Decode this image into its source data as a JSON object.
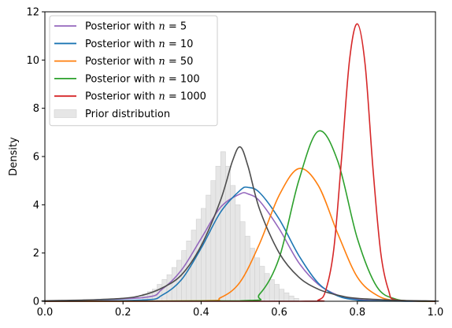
{
  "chart_data": {
    "type": "line",
    "xlabel": "",
    "ylabel": "Density",
    "xlim": [
      0.0,
      1.0
    ],
    "ylim": [
      0,
      12
    ],
    "xticks": [
      "0.0",
      "0.2",
      "0.4",
      "0.6",
      "0.8",
      "1.0"
    ],
    "yticks": [
      "0",
      "2",
      "4",
      "6",
      "8",
      "10",
      "12"
    ],
    "grid": false,
    "legend_position": "top-left",
    "series": [
      {
        "name": "Posterior with n = 5",
        "label_prefix": "Posterior with ",
        "label_var": "n",
        "label_value": "5",
        "color": "#9467bd",
        "x": [
          0.25,
          0.3,
          0.35,
          0.4,
          0.45,
          0.5,
          0.52,
          0.55,
          0.6,
          0.65,
          0.7,
          0.75,
          0.8,
          0.85
        ],
        "y": [
          0.15,
          0.5,
          1.3,
          2.6,
          3.9,
          4.45,
          4.45,
          4.15,
          3.0,
          1.6,
          0.7,
          0.25,
          0.08,
          0.02
        ]
      },
      {
        "name": "Posterior with n = 10",
        "label_prefix": "Posterior with ",
        "label_var": "n",
        "label_value": "10",
        "color": "#1f77b4",
        "x": [
          0.25,
          0.3,
          0.35,
          0.4,
          0.45,
          0.5,
          0.52,
          0.55,
          0.6,
          0.65,
          0.7,
          0.75,
          0.8,
          0.85
        ],
        "y": [
          0.05,
          0.25,
          0.9,
          2.2,
          3.7,
          4.6,
          4.72,
          4.5,
          3.4,
          1.9,
          0.75,
          0.22,
          0.05,
          0.01
        ]
      },
      {
        "name": "Posterior with n = 50",
        "label_prefix": "Posterior with ",
        "label_var": "n",
        "label_value": "50",
        "color": "#ff7f0e",
        "x": [
          0.4,
          0.45,
          0.5,
          0.55,
          0.6,
          0.65,
          0.7,
          0.75,
          0.8,
          0.85,
          0.9
        ],
        "y": [
          0.02,
          0.15,
          0.8,
          2.4,
          4.4,
          5.5,
          4.8,
          2.8,
          1.0,
          0.25,
          0.03
        ]
      },
      {
        "name": "Posterior with n = 100",
        "label_prefix": "Posterior with ",
        "label_var": "n",
        "label_value": "100",
        "color": "#2ca02c",
        "x": [
          0.5,
          0.55,
          0.6,
          0.65,
          0.7,
          0.75,
          0.8,
          0.85,
          0.9,
          0.95
        ],
        "y": [
          0.02,
          0.3,
          1.8,
          5.0,
          7.05,
          5.8,
          2.6,
          0.6,
          0.08,
          0.01
        ]
      },
      {
        "name": "Posterior with n = 1000",
        "label_prefix": "Posterior with ",
        "label_var": "n",
        "label_value": "1000",
        "color": "#d62728",
        "x": [
          0.65,
          0.7,
          0.72,
          0.74,
          0.76,
          0.78,
          0.8,
          0.82,
          0.84,
          0.86,
          0.88,
          0.9
        ],
        "y": [
          0.0,
          0.05,
          0.5,
          2.2,
          6.0,
          10.0,
          11.5,
          9.8,
          5.5,
          2.0,
          0.45,
          0.05
        ]
      },
      {
        "name": "",
        "color": "#4d4d4d",
        "x": [
          0.0,
          0.1,
          0.2,
          0.25,
          0.3,
          0.35,
          0.4,
          0.45,
          0.48,
          0.5,
          0.52,
          0.55,
          0.6,
          0.65,
          0.7,
          0.75,
          0.8,
          0.9,
          1.0
        ],
        "y": [
          0.02,
          0.05,
          0.12,
          0.25,
          0.55,
          1.1,
          2.3,
          4.2,
          5.8,
          6.4,
          5.6,
          3.8,
          2.0,
          1.0,
          0.5,
          0.25,
          0.12,
          0.04,
          0.01
        ]
      }
    ],
    "histogram": {
      "name": "Prior distribution",
      "color": "#e6e6e6",
      "bin_start": 0.25,
      "bin_width": 0.0125,
      "heights": [
        0.3,
        0.4,
        0.5,
        0.7,
        0.9,
        1.1,
        1.4,
        1.7,
        2.1,
        2.5,
        2.95,
        3.4,
        3.85,
        4.4,
        5.0,
        5.6,
        6.2,
        5.6,
        4.8,
        4.0,
        3.3,
        2.7,
        2.2,
        1.8,
        1.45,
        1.15,
        0.9,
        0.7,
        0.5,
        0.35,
        0.22,
        0.12
      ]
    }
  }
}
